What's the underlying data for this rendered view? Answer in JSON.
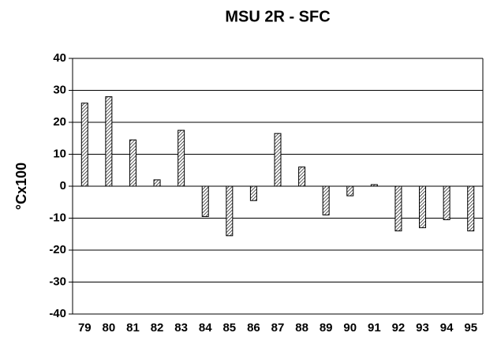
{
  "chart_data": {
    "type": "bar",
    "title": "MSU 2R - SFC",
    "y_label": "°Cx100",
    "categories": [
      "79",
      "80",
      "81",
      "82",
      "83",
      "84",
      "85",
      "86",
      "87",
      "88",
      "89",
      "90",
      "91",
      "92",
      "93",
      "94",
      "95"
    ],
    "values": [
      26,
      28,
      14.5,
      2,
      17.5,
      -9.5,
      -15.5,
      -4.5,
      16.5,
      6,
      -9,
      -3,
      0.5,
      -14,
      -13,
      -10.5,
      -14
    ],
    "color": "#000000",
    "ylim": [
      -40,
      40
    ],
    "yticks": [
      -40,
      -30,
      -20,
      -10,
      0,
      10,
      20,
      30,
      40
    ],
    "grid": true
  }
}
